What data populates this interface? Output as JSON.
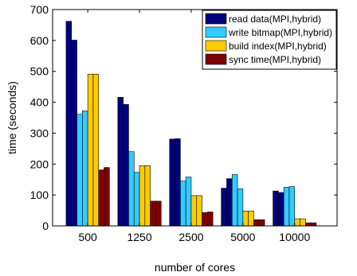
{
  "chart_data": {
    "type": "bar",
    "categories": [
      "500",
      "1250",
      "2500",
      "5000",
      "10000"
    ],
    "xlabel": "number of cores",
    "ylabel": "time (seconds)",
    "ylim": [
      0,
      700
    ],
    "yticks": [
      0,
      100,
      200,
      300,
      400,
      500,
      600,
      700
    ],
    "grid": false,
    "legend_position": "top-right",
    "series": [
      {
        "name": "read data(MPI,hybrid)",
        "color": "#00007f",
        "values": [
          [
            662,
            601
          ],
          [
            416,
            393
          ],
          [
            281,
            282
          ],
          [
            122,
            153
          ],
          [
            113,
            108
          ]
        ]
      },
      {
        "name": "write bitmap(MPI,hybrid)",
        "color": "#33ccff",
        "values": [
          [
            361,
            372
          ],
          [
            240,
            173
          ],
          [
            145,
            158
          ],
          [
            166,
            120
          ],
          [
            125,
            127
          ]
        ]
      },
      {
        "name": "build index(MPI,hybrid)",
        "color": "#ffcc00",
        "values": [
          [
            491,
            491
          ],
          [
            195,
            195
          ],
          [
            98,
            98
          ],
          [
            48,
            48
          ],
          [
            23,
            23
          ]
        ]
      },
      {
        "name": "sync  time(MPI,hybrid)",
        "color": "#7f0000",
        "values": [
          [
            181,
            189
          ],
          [
            80,
            80
          ],
          [
            43,
            45
          ],
          [
            20,
            20
          ],
          [
            10,
            10
          ]
        ]
      }
    ]
  }
}
